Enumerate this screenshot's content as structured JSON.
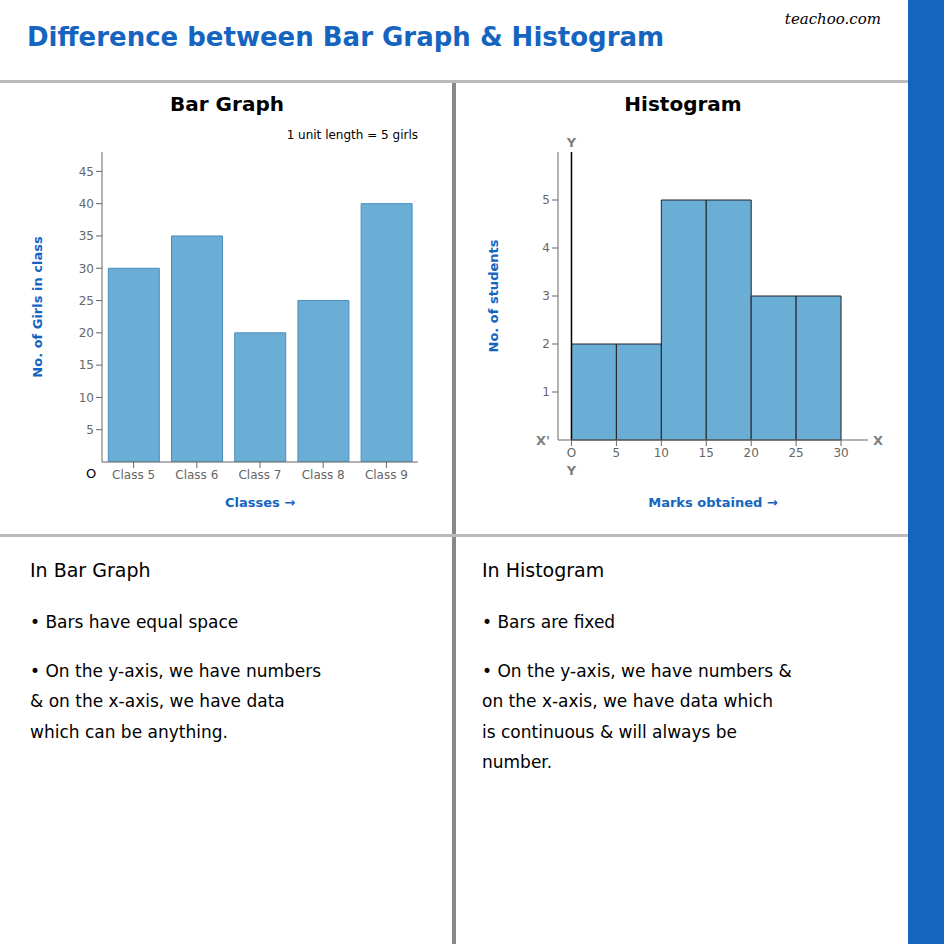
{
  "title": "Difference between Bar Graph & Histogram",
  "annotations": [
    "teachoo.com"
  ],
  "chart_data": [
    {
      "type": "bar",
      "title": "Bar Graph",
      "categories": [
        "Class 5",
        "Class 6",
        "Class 7",
        "Class 8",
        "Class 9"
      ],
      "values": [
        30,
        35,
        20,
        25,
        40
      ],
      "color": "#6aaed6",
      "ylabel": "No. of Girls in class",
      "xlabel": "Classes  →",
      "ylim": [
        0,
        48
      ],
      "yticks": [
        5,
        10,
        15,
        20,
        25,
        30,
        35,
        40,
        45
      ],
      "grid": false,
      "annotations": [
        "1 unit length = 5 girls",
        "O",
        "In Bar Graph",
        "•  Bars have equal space",
        "•  On the y-axis, we have numbers\n& on the x-axis, we have data\nwhich can be anything."
      ]
    },
    {
      "type": "histogram",
      "title": "Histogram",
      "bins": [
        0,
        5,
        10,
        15,
        20,
        25,
        30
      ],
      "values": [
        2,
        2,
        5,
        5,
        3,
        3
      ],
      "color": "#6aaed6",
      "ylabel": "No. of students",
      "xlabel": "Marks obtained  →",
      "xlim": [
        -1.5,
        33
      ],
      "xticks": [
        {
          "value": 0,
          "label": "O"
        },
        5,
        10,
        15,
        20,
        25,
        30
      ],
      "ylim": [
        0,
        6
      ],
      "yticks": [
        1,
        2,
        3,
        4,
        5
      ],
      "grid": false,
      "annotations": [
        "Y",
        "X",
        "X'",
        "Y",
        "In Histogram",
        "•  Bars are fixed",
        "•  On the y-axis, we have numbers &\non the x-axis, we have data which\nis continuous & will always be\nnumber."
      ]
    }
  ]
}
